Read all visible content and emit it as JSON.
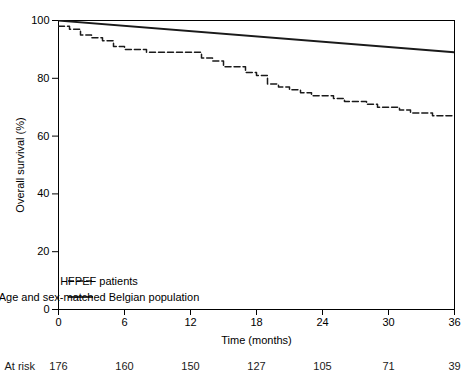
{
  "chart_data": {
    "type": "line",
    "xlabel": "Time (months)",
    "ylabel": "Overall survival (%)",
    "series": [
      {
        "name": "HFPEF patients",
        "type": "step",
        "line_style": "dashed",
        "color": "#1a1a1a",
        "x": [
          0,
          1,
          2,
          3,
          4,
          5,
          6,
          7,
          8,
          9,
          10,
          11,
          12,
          13,
          14,
          15,
          16,
          17,
          18,
          19,
          20,
          21,
          22,
          23,
          24,
          25,
          26,
          27,
          28,
          29,
          30,
          31,
          32,
          33,
          34,
          35,
          36
        ],
        "values": [
          98,
          97,
          95,
          94,
          93,
          91,
          90,
          90,
          89,
          89,
          89,
          89,
          89,
          87,
          86,
          84,
          84,
          82,
          81,
          78,
          77,
          76,
          75,
          74,
          74,
          73,
          72,
          72,
          71,
          70,
          70,
          69,
          68,
          68,
          67,
          67,
          67
        ]
      },
      {
        "name": "Age and sex-matched Belgian population",
        "type": "line",
        "line_style": "solid",
        "color": "#1a1a1a",
        "x": [
          0,
          36
        ],
        "values": [
          100,
          89
        ]
      }
    ],
    "xlim": [
      0,
      36
    ],
    "ylim": [
      0,
      100
    ],
    "xticks": [
      0,
      6,
      12,
      18,
      24,
      30,
      36
    ],
    "yticks": [
      0,
      20,
      40,
      60,
      80,
      100
    ],
    "legend": "lower left",
    "at_risk": {
      "label": "At risk",
      "color": "#1a1a1a",
      "x": [
        0,
        6,
        12,
        18,
        24,
        30,
        36
      ],
      "values": [
        176,
        160,
        150,
        127,
        105,
        71,
        39
      ]
    }
  }
}
